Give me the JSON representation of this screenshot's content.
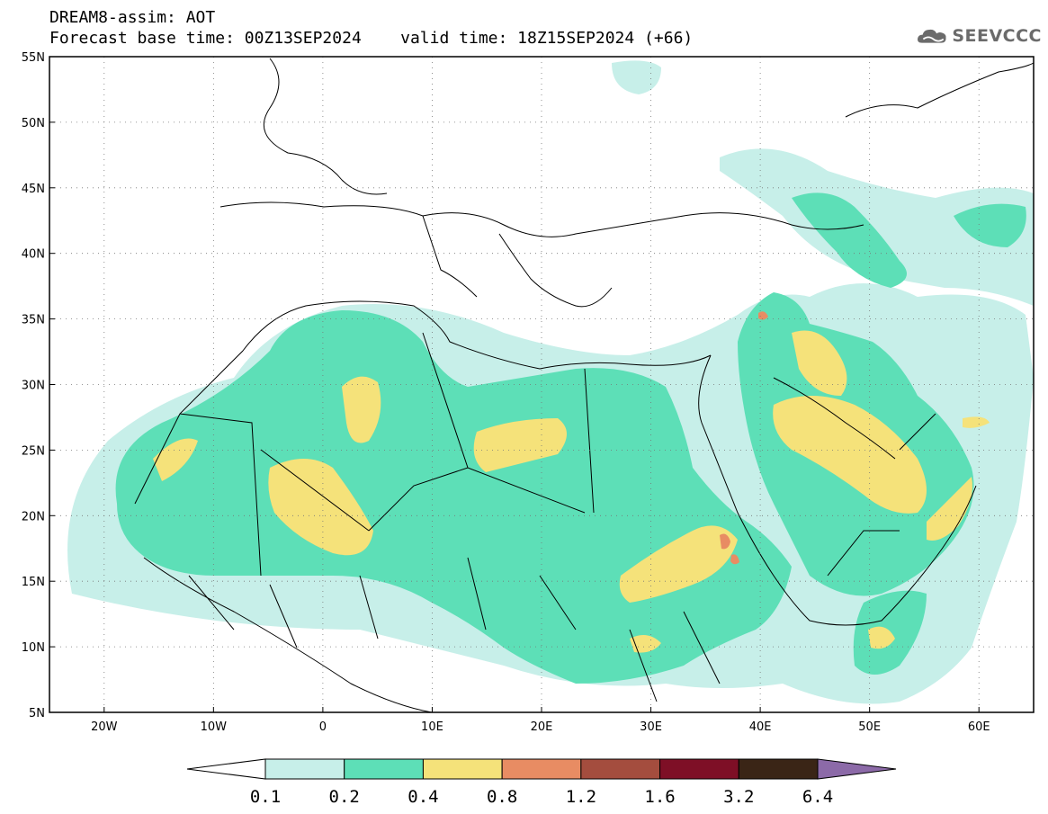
{
  "header": {
    "title_line1": "DREAM8-assim: AOT",
    "title_line2": "Forecast base time: 00Z13SEP2024    valid time: 18Z15SEP2024 (+66)",
    "logo_text": "SEEVCCC"
  },
  "map": {
    "lat_labels": [
      "55N",
      "50N",
      "45N",
      "40N",
      "35N",
      "30N",
      "25N",
      "20N",
      "15N",
      "10N",
      "5N"
    ],
    "lon_labels": [
      "20W",
      "10W",
      "0",
      "10E",
      "20E",
      "30E",
      "40E",
      "50E",
      "60E"
    ],
    "lon_range": [
      -25,
      65
    ],
    "lat_range": [
      5,
      55
    ],
    "gridlines": "dotted"
  },
  "colorbar": {
    "labels": [
      "0.1",
      "0.2",
      "0.4",
      "0.8",
      "1.2",
      "1.6",
      "3.2",
      "6.4"
    ],
    "colors": [
      "#ffffff",
      "#c7efe9",
      "#5ddfb7",
      "#f5e27a",
      "#e88c63",
      "#a44d3e",
      "#7e0f26",
      "#3a2516",
      "#8c6aa8"
    ]
  },
  "chart_data": {
    "type": "heatmap",
    "variable": "AOT",
    "levels": [
      0.1,
      0.2,
      0.4,
      0.8,
      1.2,
      1.6,
      3.2,
      6.4
    ],
    "xlim": [
      -25,
      65
    ],
    "ylim": [
      5,
      55
    ]
  }
}
